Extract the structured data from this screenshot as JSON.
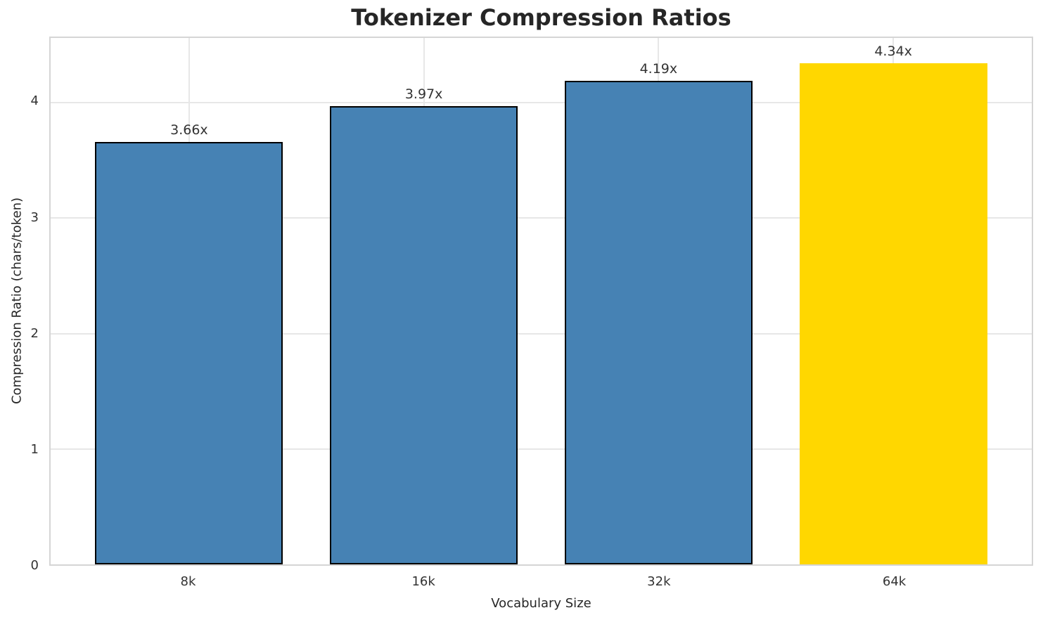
{
  "chart_data": {
    "type": "bar",
    "title": "Tokenizer Compression Ratios",
    "xlabel": "Vocabulary Size",
    "ylabel": "Compression Ratio (chars/token)",
    "categories": [
      "8k",
      "16k",
      "32k",
      "64k"
    ],
    "values": [
      3.66,
      3.97,
      4.19,
      4.34
    ],
    "bar_labels": [
      "3.66x",
      "3.97x",
      "4.19x",
      "4.34x"
    ],
    "bar_colors": [
      "#4682b4",
      "#4682b4",
      "#4682b4",
      "#ffd700"
    ],
    "bar_edge_colors": [
      "#000000",
      "#000000",
      "#000000",
      "none"
    ],
    "series_color": "#4682b4",
    "highlight_color": "#ffd700",
    "ylim": [
      0,
      4.56
    ],
    "yticks": [
      0,
      1,
      2,
      3,
      4
    ],
    "grid": true,
    "legend": "none",
    "grid_color": "#e7e7e7",
    "spine_color": "#d5d5d5",
    "title_color": "#262626",
    "tick_color": "#333333"
  }
}
